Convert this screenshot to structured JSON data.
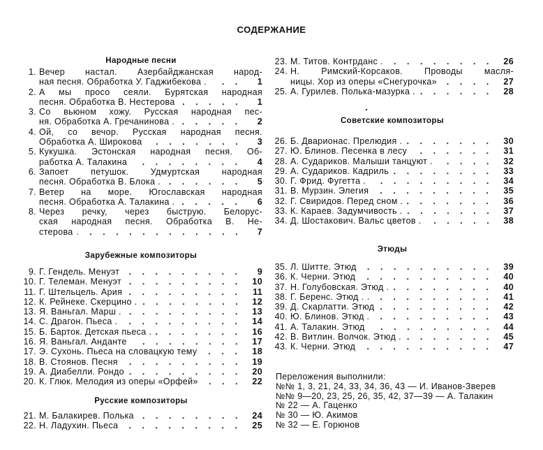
{
  "title": "СОДЕРЖАНИЕ",
  "sections": [
    {
      "heading": "Народные песни",
      "entries": [
        {
          "num": "1.",
          "lines": [
            "Вечер настал. Азербайджанская народ-",
            "ная песня. Обработка У. Гаджибекова ."
          ],
          "page": "1"
        },
        {
          "num": "2.",
          "lines": [
            "А мы просо сеяли. Бурятская народная",
            "песня. Обработка В. Нестерова"
          ],
          "page": "1"
        },
        {
          "num": "3.",
          "lines": [
            "Со вьюном хожу. Русская народная пес-",
            "ня. Обработка А. Гречанинова ."
          ],
          "page": "2"
        },
        {
          "num": "4.",
          "lines": [
            "Ой, со вечор. Русская народная песня.",
            "Обработка А. Широкова"
          ],
          "page": "3"
        },
        {
          "num": "5.",
          "lines": [
            "Кукушка. Эстонская народная песня. Об-",
            "работка А. Талакина"
          ],
          "page": "4"
        },
        {
          "num": "6.",
          "lines": [
            "Запоет петушок. Удмуртская народная",
            "песня. Обработка В. Блока ."
          ],
          "page": "5"
        },
        {
          "num": "7.",
          "lines": [
            "Ветер на море. Югославская народная",
            "песня. Обработка А. Талакина ."
          ],
          "page": "6"
        },
        {
          "num": "8.",
          "lines": [
            "Через речку, через быструю. Белорус-",
            "ская народная песня. Обработка В. Не-",
            "стерова"
          ],
          "page": "7"
        }
      ]
    },
    {
      "heading": "Зарубежные композиторы",
      "entries": [
        {
          "num": "9.",
          "lines": [
            "Г. Гендель. Менуэт"
          ],
          "page": "9"
        },
        {
          "num": "10.",
          "lines": [
            "Г. Телеман. Менуэт"
          ],
          "page": "10"
        },
        {
          "num": "11.",
          "lines": [
            "Г. Штельцель. Ария"
          ],
          "page": "11"
        },
        {
          "num": "12.",
          "lines": [
            "К. Рейнеке. Скерцино ."
          ],
          "page": "12"
        },
        {
          "num": "13.",
          "lines": [
            "Я. Ваньгал. Марш ."
          ],
          "page": "13"
        },
        {
          "num": "14.",
          "lines": [
            "С. Драгон. Пьеса ."
          ],
          "page": "14"
        },
        {
          "num": "15.",
          "lines": [
            "Б. Барток. Детская пьеса ."
          ],
          "page": "16"
        },
        {
          "num": "16.",
          "lines": [
            "Я. Ваньгал. Анданте"
          ],
          "page": "17"
        },
        {
          "num": "17.",
          "lines": [
            "Э. Сухонь. Пьеса на словацкую тему"
          ],
          "page": "18"
        },
        {
          "num": "18.",
          "lines": [
            "В. Стоянов. Песня"
          ],
          "page": "19"
        },
        {
          "num": "19.",
          "lines": [
            "А. Диабелли. Рондо"
          ],
          "page": "20"
        },
        {
          "num": "20.",
          "lines": [
            "К. Глюк. Мелодия из оперы «Орфей»"
          ],
          "page": "22"
        }
      ]
    },
    {
      "heading": "Русские композиторы",
      "entries": [
        {
          "num": "21.",
          "lines": [
            "М. Балакирев. Полька"
          ],
          "page": "24"
        },
        {
          "num": "22.",
          "lines": [
            "Н. Ладухин. Пьеса"
          ],
          "page": "25"
        },
        {
          "num": "23.",
          "lines": [
            "М. Титов. Контрданс ."
          ],
          "page": "26"
        },
        {
          "num": "24.",
          "lines": [
            "Н. Римский-Корсаков. Проводы масля-",
            "ницы. Хор из оперы «Снегурочка»"
          ],
          "page": "27"
        },
        {
          "num": "25.",
          "lines": [
            "А. Гурилев. Полька-мазурка ."
          ],
          "page": "28"
        }
      ]
    },
    {
      "heading": "Советские композиторы",
      "entries": [
        {
          "num": "26.",
          "lines": [
            "Б. Дварионас. Прелюдия ."
          ],
          "page": "30"
        },
        {
          "num": "27.",
          "lines": [
            "Ю. Блинов. Песенка в лесу"
          ],
          "page": "31"
        },
        {
          "num": "28.",
          "lines": [
            "А. Судариков. Малыши танцуют ."
          ],
          "page": "32"
        },
        {
          "num": "29.",
          "lines": [
            "А. Судариков. Кадриль"
          ],
          "page": "33"
        },
        {
          "num": "30.",
          "lines": [
            "Г. Фрид. Фугетта ."
          ],
          "page": "34"
        },
        {
          "num": "31.",
          "lines": [
            "В. Мурзин. Элегия"
          ],
          "page": "35"
        },
        {
          "num": "32.",
          "lines": [
            "Г. Свиридов. Перед сном ."
          ],
          "page": "36"
        },
        {
          "num": "33.",
          "lines": [
            "К. Караев. Задумчивость ."
          ],
          "page": "37"
        },
        {
          "num": "34.",
          "lines": [
            "Д. Шостакович. Вальс цветов ."
          ],
          "page": "38"
        }
      ]
    },
    {
      "heading": "Этюды",
      "entries": [
        {
          "num": "35.",
          "lines": [
            "Л. Шитте. Этюд"
          ],
          "page": "39"
        },
        {
          "num": "36.",
          "lines": [
            "К. Черни. Этюд"
          ],
          "page": "40"
        },
        {
          "num": "37.",
          "lines": [
            "Н. Голубовская. Этюд ."
          ],
          "page": "40"
        },
        {
          "num": "38.",
          "lines": [
            "Г. Беренс. Этюд ."
          ],
          "page": "41"
        },
        {
          "num": "39.",
          "lines": [
            "Д. Скарлатти. Этюд"
          ],
          "page": "42"
        },
        {
          "num": "40.",
          "lines": [
            "Ю. Блинов. Этюд ."
          ],
          "page": "43"
        },
        {
          "num": "41.",
          "lines": [
            "А. Талакин. Этюд"
          ],
          "page": "44"
        },
        {
          "num": "42.",
          "lines": [
            "В. Витлин. Волчок. Этюд ."
          ],
          "page": "45"
        },
        {
          "num": "43.",
          "lines": [
            "К. Черни. Этюд"
          ],
          "page": "47"
        }
      ]
    }
  ],
  "arrangements": {
    "heading": "Переложения выполнили:",
    "lines": [
      "№№ 1, 3, 21, 24, 33, 34, 36, 43 — И. Иванов-Зверев",
      "№№ 9—20, 23, 25, 26, 35, 42, 37—39 — А. Талакин",
      "№ 22 — А. Гаценко",
      "№ 30 — Ю. Акимов",
      "№ 32 — Е. Горюнов"
    ]
  }
}
